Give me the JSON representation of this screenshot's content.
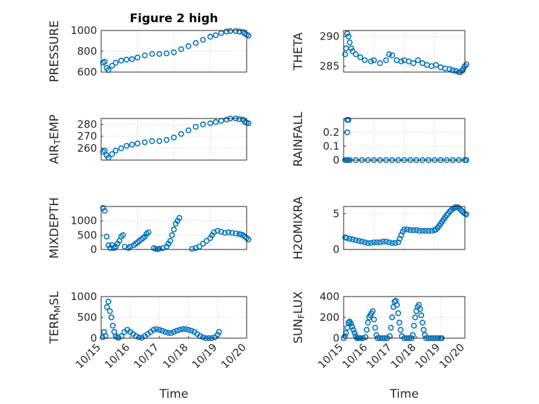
{
  "chart_data": [
    {
      "type": "scatter",
      "title": "Figure 2 high",
      "ylabel": "PRESSURE",
      "xlabel": "",
      "ylim": [
        600,
        1000
      ],
      "yticks": [
        600,
        800,
        1000
      ],
      "xlim": [
        "10/15",
        "10/19"
      ],
      "grid": true,
      "series": [
        {
          "x": [
            15.05,
            15.1,
            15.15,
            15.2,
            15.3,
            15.4,
            15.55,
            15.7,
            15.85,
            16.0,
            16.2,
            16.4,
            16.6,
            16.8,
            17.0,
            17.2,
            17.4,
            17.6,
            17.8,
            18.0,
            18.15,
            18.3,
            18.45,
            18.55,
            18.7,
            18.8,
            18.9,
            18.95,
            19.0,
            19.05
          ],
          "y": [
            690,
            700,
            640,
            620,
            660,
            690,
            710,
            720,
            725,
            740,
            760,
            775,
            775,
            780,
            790,
            820,
            850,
            880,
            910,
            940,
            955,
            975,
            990,
            995,
            995,
            990,
            985,
            970,
            960,
            950
          ]
        }
      ]
    },
    {
      "type": "scatter",
      "title": "",
      "ylabel": "THETA",
      "xlabel": "",
      "ylim": [
        284,
        291
      ],
      "yticks": [
        285,
        290
      ],
      "xlim": [
        "10/15",
        "10/19"
      ],
      "grid": true,
      "series": [
        {
          "x": [
            15.05,
            15.08,
            15.12,
            15.16,
            15.2,
            15.25,
            15.3,
            15.4,
            15.55,
            15.7,
            15.9,
            16.0,
            16.2,
            16.4,
            16.5,
            16.6,
            16.75,
            16.9,
            17.0,
            17.15,
            17.3,
            17.45,
            17.6,
            17.75,
            17.9,
            18.05,
            18.2,
            18.35,
            18.5,
            18.6,
            18.7,
            18.8,
            18.85,
            18.9,
            18.95,
            19.0,
            19.05
          ],
          "y": [
            287,
            288,
            290.5,
            290,
            289,
            288,
            287.5,
            287,
            286.5,
            286,
            285.8,
            286,
            285.5,
            286,
            287,
            286.8,
            286,
            285.8,
            286,
            285.8,
            285.5,
            286,
            285.5,
            285.2,
            285,
            285.2,
            284.8,
            284.6,
            284.5,
            284.3,
            284.2,
            284,
            284,
            284.2,
            284.6,
            285,
            285.3
          ]
        }
      ]
    },
    {
      "type": "scatter",
      "title": "",
      "ylabel": "AIR_TEMP",
      "ylabel_parts": [
        "AIR",
        "T",
        "EMP"
      ],
      "xlabel": "",
      "ylim": [
        250,
        285
      ],
      "yticks": [
        260,
        270,
        280
      ],
      "xlim": [
        "10/15",
        "10/19"
      ],
      "grid": true,
      "series": [
        {
          "x": [
            15.05,
            15.1,
            15.15,
            15.2,
            15.3,
            15.4,
            15.55,
            15.7,
            15.85,
            16.0,
            16.2,
            16.4,
            16.6,
            16.8,
            17.0,
            17.2,
            17.4,
            17.6,
            17.8,
            18.0,
            18.15,
            18.3,
            18.45,
            18.55,
            18.7,
            18.8,
            18.9,
            18.95,
            19.0,
            19.05
          ],
          "y": [
            257,
            258,
            254,
            252,
            255,
            258,
            260,
            262,
            263,
            264,
            265,
            266,
            266,
            267,
            269,
            272,
            275,
            278,
            280,
            281,
            282,
            283,
            284,
            285,
            285,
            284.5,
            284,
            282,
            281.5,
            281
          ]
        }
      ]
    },
    {
      "type": "scatter",
      "title": "",
      "ylabel": "RAINFALL",
      "xlabel": "",
      "ylim": [
        0,
        0.3
      ],
      "yticks": [
        0,
        0.1,
        0.2
      ],
      "xlim": [
        "10/15",
        "10/19"
      ],
      "grid": true,
      "series": [
        {
          "x": [
            15.05,
            15.1,
            15.15,
            15.2,
            15.4,
            15.6,
            15.8,
            16.0,
            16.2,
            16.4,
            16.6,
            16.8,
            17.0,
            17.2,
            17.4,
            17.6,
            17.8,
            18.0,
            18.2,
            18.4,
            18.6,
            18.8,
            19.0,
            19.05,
            15.12,
            15.12,
            15.16
          ],
          "y": [
            0,
            0,
            0,
            0,
            0,
            0,
            0,
            0,
            0,
            0,
            0,
            0,
            0,
            0,
            0,
            0,
            0,
            0,
            0,
            0,
            0,
            0,
            0,
            0,
            0.2,
            0.29,
            0.29
          ]
        }
      ]
    },
    {
      "type": "scatter",
      "title": "",
      "ylabel": "MIXDEPTH",
      "xlabel": "",
      "ylim": [
        0,
        1500
      ],
      "yticks": [
        0,
        500,
        1000
      ],
      "xlim": [
        "10/15",
        "10/19"
      ],
      "grid": true,
      "series": [
        {
          "x": [
            15.05,
            15.1,
            15.15,
            15.2,
            15.25,
            15.3,
            15.35,
            15.4,
            15.45,
            15.5,
            15.55,
            15.6,
            15.65,
            15.75,
            15.8,
            15.9,
            15.95,
            16.0,
            16.05,
            16.1,
            16.15,
            16.2,
            16.25,
            16.3,
            16.45,
            16.5,
            16.55,
            16.6,
            16.7,
            16.8,
            16.85,
            16.9,
            16.95,
            17.0,
            17.05,
            17.1,
            17.15,
            17.5,
            17.6,
            17.7,
            17.8,
            17.9,
            18.0,
            18.05,
            18.1,
            18.2,
            18.3,
            18.4,
            18.5,
            18.6,
            18.7,
            18.8,
            18.85,
            18.9,
            18.95,
            19.0,
            19.05
          ],
          "y": [
            1450,
            1350,
            450,
            150,
            50,
            150,
            50,
            100,
            200,
            300,
            450,
            500,
            100,
            50,
            100,
            150,
            200,
            250,
            300,
            350,
            400,
            450,
            550,
            600,
            50,
            20,
            10,
            30,
            50,
            100,
            200,
            300,
            500,
            700,
            900,
            1000,
            1100,
            20,
            50,
            100,
            200,
            300,
            400,
            500,
            600,
            650,
            620,
            580,
            600,
            580,
            560,
            540,
            520,
            500,
            450,
            400,
            350
          ]
        }
      ]
    },
    {
      "type": "scatter",
      "title": "",
      "ylabel": "H2OMIXRA",
      "xlabel": "",
      "ylim": [
        0,
        6
      ],
      "yticks": [
        0,
        5
      ],
      "xlim": [
        "10/15",
        "10/19"
      ],
      "grid": true,
      "series": [
        {
          "x": [
            15.05,
            15.1,
            15.2,
            15.3,
            15.4,
            15.5,
            15.6,
            15.7,
            15.8,
            15.9,
            16.0,
            16.1,
            16.2,
            16.3,
            16.4,
            16.5,
            16.6,
            16.7,
            16.8,
            16.85,
            16.9,
            16.95,
            17.0,
            17.1,
            17.2,
            17.3,
            17.4,
            17.5,
            17.6,
            17.7,
            17.8,
            17.9,
            18.0,
            18.05,
            18.1,
            18.15,
            18.2,
            18.25,
            18.3,
            18.35,
            18.4,
            18.45,
            18.5,
            18.55,
            18.6,
            18.65,
            18.7,
            18.75,
            18.8,
            18.85,
            18.9,
            18.95,
            19.0,
            19.05
          ],
          "y": [
            1.7,
            1.6,
            1.5,
            1.4,
            1.3,
            1.2,
            1.1,
            1.0,
            0.9,
            0.9,
            1.0,
            1.0,
            1.0,
            1.1,
            1.1,
            1.0,
            0.9,
            0.9,
            1.0,
            1.5,
            2.0,
            2.5,
            2.8,
            2.8,
            2.7,
            2.7,
            2.7,
            2.6,
            2.6,
            2.6,
            2.6,
            2.6,
            2.7,
            2.8,
            3.0,
            3.3,
            3.6,
            3.9,
            4.2,
            4.5,
            4.8,
            5.0,
            5.3,
            5.5,
            5.7,
            5.8,
            5.9,
            5.9,
            5.8,
            5.6,
            5.4,
            5.2,
            5.0,
            4.9
          ]
        }
      ]
    },
    {
      "type": "scatter",
      "title": "",
      "ylabel": "TERR_MSL",
      "ylabel_parts": [
        "TERR",
        "M",
        "SL"
      ],
      "xlabel": "Time",
      "ylim": [
        0,
        1000
      ],
      "yticks": [
        0,
        500,
        1000
      ],
      "xlim": [
        "10/15",
        "10/20"
      ],
      "xticks": [
        "10/15",
        "10/16",
        "10/17",
        "10/18",
        "10/19",
        "10/20"
      ],
      "grid": true,
      "series": [
        {
          "x": [
            15.05,
            15.1,
            15.15,
            15.2,
            15.25,
            15.3,
            15.35,
            15.4,
            15.45,
            15.5,
            15.55,
            15.6,
            15.7,
            15.8,
            15.9,
            16.0,
            16.1,
            16.2,
            16.3,
            16.4,
            16.5,
            16.6,
            16.7,
            16.8,
            16.9,
            17.0,
            17.1,
            17.2,
            17.3,
            17.4,
            17.5,
            17.6,
            17.7,
            17.8,
            17.9,
            18.0,
            18.1,
            18.2,
            18.3,
            18.4,
            18.5,
            18.6,
            18.7,
            18.8,
            18.9,
            19.0,
            19.05
          ],
          "y": [
            20,
            150,
            50,
            750,
            880,
            650,
            500,
            300,
            150,
            50,
            20,
            10,
            50,
            150,
            200,
            150,
            100,
            50,
            20,
            10,
            50,
            100,
            150,
            200,
            220,
            200,
            180,
            150,
            130,
            120,
            150,
            180,
            200,
            220,
            220,
            200,
            180,
            150,
            100,
            50,
            20,
            0,
            0,
            0,
            20,
            80,
            150
          ]
        }
      ]
    },
    {
      "type": "scatter",
      "title": "",
      "ylabel": "SUN_FLUX",
      "ylabel_parts": [
        "SUN",
        "F",
        "LUX"
      ],
      "xlabel": "Time",
      "ylim": [
        0,
        400
      ],
      "yticks": [
        0,
        200,
        400
      ],
      "xlim": [
        "10/15",
        "10/20"
      ],
      "xticks": [
        "10/15",
        "10/16",
        "10/17",
        "10/18",
        "10/19",
        "10/20"
      ],
      "grid": true,
      "series": [
        {
          "x": [
            15.0,
            15.05,
            15.1,
            15.15,
            15.2,
            15.25,
            15.3,
            15.35,
            15.4,
            15.45,
            15.5,
            15.55,
            15.6,
            15.65,
            15.7,
            15.8,
            15.9,
            15.95,
            16.0,
            16.05,
            16.1,
            16.15,
            16.2,
            16.25,
            16.3,
            16.35,
            16.4,
            16.5,
            16.6,
            16.7,
            16.8,
            16.9,
            16.95,
            17.0,
            17.05,
            17.1,
            17.15,
            17.2,
            17.25,
            17.3,
            17.35,
            17.4,
            17.5,
            17.6,
            17.7,
            17.8,
            17.85,
            17.9,
            17.95,
            18.0,
            18.05,
            18.1,
            18.15,
            18.2,
            18.25,
            18.3,
            18.35,
            18.4,
            18.5,
            18.6,
            18.7,
            18.8,
            18.9,
            19.0,
            19.05
          ],
          "y": [
            0,
            20,
            50,
            100,
            150,
            160,
            140,
            110,
            80,
            50,
            20,
            0,
            0,
            0,
            0,
            0,
            10,
            80,
            150,
            200,
            220,
            240,
            260,
            180,
            100,
            30,
            0,
            0,
            0,
            0,
            0,
            20,
            100,
            200,
            300,
            350,
            360,
            320,
            240,
            150,
            80,
            20,
            0,
            0,
            0,
            0,
            30,
            120,
            200,
            260,
            300,
            320,
            280,
            220,
            150,
            80,
            30,
            0,
            0,
            0,
            0,
            0,
            0,
            0,
            0
          ]
        }
      ]
    }
  ]
}
